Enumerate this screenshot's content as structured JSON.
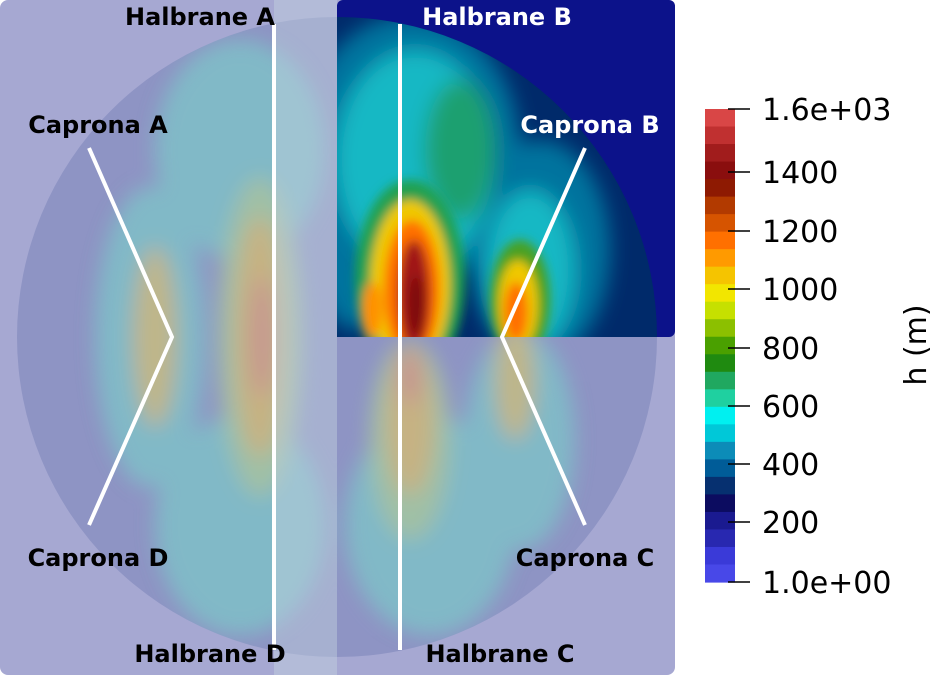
{
  "labels": {
    "halbrane_a": "Halbrane A",
    "halbrane_b": "Halbrane B",
    "halbrane_c": "Halbrane C",
    "halbrane_d": "Halbrane D",
    "caprona_a": "Caprona A",
    "caprona_b": "Caprona B",
    "caprona_c": "Caprona C",
    "caprona_d": "Caprona D"
  },
  "colorbar": {
    "title": "h (m)",
    "ticks": [
      "1.6e+03",
      "1400",
      "1200",
      "1000",
      "800",
      "600",
      "400",
      "200",
      "1.0e+00"
    ],
    "colors": [
      "#d94646",
      "#c03030",
      "#a11c1c",
      "#8a0e0e",
      "#8e1a02",
      "#b23a00",
      "#d65400",
      "#ff7000",
      "#ff9a00",
      "#f5c400",
      "#f2e600",
      "#c6e000",
      "#8cc000",
      "#4aa000",
      "#1f8a10",
      "#20a860",
      "#1fd0a0",
      "#00f0f0",
      "#00c8d8",
      "#0c8cb8",
      "#005c98",
      "#063070",
      "#0c0c60",
      "#1a1a90",
      "#2828b0",
      "#3a3ad8",
      "#4848e8"
    ]
  },
  "colors": {
    "overlay": "#a6a8d2",
    "overlay_light": "#b4c2d8",
    "quadrant_background": "#0c128a",
    "path_line": "#ffffff"
  }
}
